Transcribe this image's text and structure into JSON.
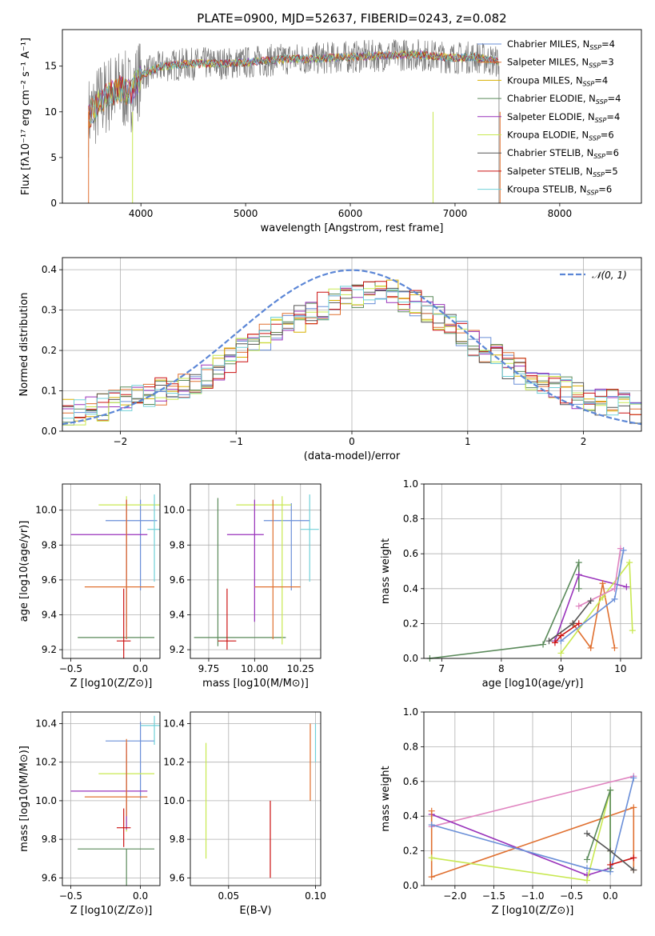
{
  "figure": {
    "title": "PLATE=0900, MJD=52637, FIBERID=0243, z=0.082"
  },
  "chart_data": [
    {
      "id": "spectrum",
      "type": "line",
      "xlabel": "wavelength [Angstrom, rest frame]",
      "ylabel": "Flux [fλ10⁻¹⁷ erg cm⁻² s⁻¹ A⁻¹]",
      "xlim": [
        3250,
        8780
      ],
      "ylim": [
        0,
        19
      ],
      "xticks": [
        4000,
        5000,
        6000,
        7000,
        8000
      ],
      "yticks": [
        0,
        5,
        10,
        15
      ],
      "grid": false,
      "legend": "upper-right",
      "series": [
        {
          "name": "Chabrier MILES, N_SSP=4",
          "color": "#6a8fd8"
        },
        {
          "name": "Salpeter MILES, N_SSP=3",
          "color": "#e07030"
        },
        {
          "name": "Kroupa MILES, N_SSP=4",
          "color": "#d8b000"
        },
        {
          "name": "Chabrier ELODIE, N_SSP=4",
          "color": "#5a8a5a"
        },
        {
          "name": "Salpeter ELODIE, N_SSP=4",
          "color": "#9933bb"
        },
        {
          "name": "Kroupa ELODIE, N_SSP=6",
          "color": "#c8e850"
        },
        {
          "name": "Chabrier STELIB, N_SSP=6",
          "color": "#555555"
        },
        {
          "name": "Salpeter STELIB, N_SSP=5",
          "color": "#cc1111"
        },
        {
          "name": "Kroupa STELIB, N_SSP=6",
          "color": "#70d0d8"
        }
      ],
      "x": [
        3500,
        3600,
        3700,
        3800,
        3900,
        4000,
        4200,
        4400,
        4600,
        4800,
        5000,
        5200,
        5400,
        5600,
        5800,
        6000,
        6200,
        6400,
        6600,
        6800,
        7000,
        7200,
        7400
      ],
      "y": [
        9.5,
        11,
        12,
        12.5,
        12,
        14,
        15,
        15.2,
        15.3,
        15.3,
        15.4,
        15.6,
        15.8,
        15.8,
        15.9,
        16,
        16.1,
        16.2,
        16.3,
        16.1,
        15.9,
        16,
        15.5
      ]
    },
    {
      "id": "residuals",
      "type": "histogram",
      "xlabel": "(data-model)/error",
      "ylabel": "Normed distribution",
      "xlim": [
        -2.5,
        2.5
      ],
      "ylim": [
        0,
        0.43
      ],
      "xticks": [
        -2,
        -1,
        0,
        1,
        2
      ],
      "yticks": [
        0.0,
        0.1,
        0.2,
        0.3,
        0.4
      ],
      "grid": true,
      "legend": "upper-right",
      "reference_curve": {
        "name": "N(0,1)",
        "mean": 0,
        "sigma": 1,
        "color": "#5b86d6"
      },
      "bin_width": 0.1,
      "counts": [
        0.05,
        0.05,
        0.06,
        0.06,
        0.07,
        0.08,
        0.08,
        0.09,
        0.1,
        0.1,
        0.11,
        0.12,
        0.14,
        0.16,
        0.18,
        0.2,
        0.21,
        0.23,
        0.25,
        0.27,
        0.28,
        0.3,
        0.31,
        0.32,
        0.33,
        0.34,
        0.35,
        0.35,
        0.34,
        0.33,
        0.32,
        0.3,
        0.28,
        0.26,
        0.24,
        0.22,
        0.2,
        0.18,
        0.16,
        0.15,
        0.13,
        0.12,
        0.11,
        0.1,
        0.09,
        0.08,
        0.07,
        0.07,
        0.06,
        0.05
      ]
    },
    {
      "id": "age-vs-Z",
      "type": "errorbar",
      "xlabel": "Z [log10(Z/Z⊙)]",
      "ylabel": "age  [log10(age/yr)]",
      "xlim": [
        -0.56,
        0.14
      ],
      "ylim": [
        9.15,
        10.15
      ],
      "xticks": [
        -0.5,
        0.0
      ],
      "yticks": [
        9.2,
        9.4,
        9.6,
        9.8,
        10.0
      ],
      "grid": true,
      "points": [
        {
          "x": -0.1,
          "y": 9.27,
          "xerr": [
            0.35,
            0.2
          ],
          "yerr": [
            0,
            0
          ],
          "series": 3
        },
        {
          "x": 0.0,
          "y": 9.94,
          "xerr": [
            0.25,
            0.12
          ],
          "yerr": [
            0.4,
            0.12
          ],
          "series": 0
        },
        {
          "x": -0.1,
          "y": 10.03,
          "xerr": [
            0.2,
            0.25
          ],
          "yerr": [
            0.7,
            0.05
          ],
          "series": 5
        },
        {
          "x": -0.1,
          "y": 9.86,
          "xerr": [
            0.4,
            0.15
          ],
          "yerr": [
            0.6,
            0.2
          ],
          "series": 4
        },
        {
          "x": -0.1,
          "y": 9.56,
          "xerr": [
            0.3,
            0.2
          ],
          "yerr": [
            0.3,
            0.5
          ],
          "series": 1
        },
        {
          "x": -0.12,
          "y": 9.25,
          "xerr": [
            0.05,
            0.05
          ],
          "yerr": [
            0.1,
            0.3
          ],
          "series": 7
        },
        {
          "x": 0.1,
          "y": 9.89,
          "xerr": [
            0.05,
            0.05
          ],
          "yerr": [
            0.3,
            0.2
          ],
          "series": 8
        }
      ]
    },
    {
      "id": "age-vs-mass",
      "type": "errorbar",
      "xlabel": "mass [log10(M/M⊙)]",
      "ylabel": "",
      "xlim": [
        9.65,
        10.36
      ],
      "ylim": [
        9.15,
        10.15
      ],
      "xticks": [
        9.75,
        10.0,
        10.25
      ],
      "yticks": [
        9.2,
        9.4,
        9.6,
        9.8,
        10.0
      ],
      "grid": true,
      "points": [
        {
          "x": 9.8,
          "y": 9.27,
          "xerr": [
            0.13,
            0.37
          ],
          "yerr": [
            0.05,
            0.8
          ],
          "series": 3
        },
        {
          "x": 10.2,
          "y": 9.94,
          "xerr": [
            0.15,
            0.1
          ],
          "yerr": [
            0.4,
            0.1
          ],
          "series": 0
        },
        {
          "x": 10.15,
          "y": 10.03,
          "xerr": [
            0.25,
            0.05
          ],
          "yerr": [
            0.8,
            0.05
          ],
          "series": 5
        },
        {
          "x": 10.0,
          "y": 9.86,
          "xerr": [
            0.15,
            0.05
          ],
          "yerr": [
            0.5,
            0.2
          ],
          "series": 4
        },
        {
          "x": 10.1,
          "y": 9.56,
          "xerr": [
            0.1,
            0.15
          ],
          "yerr": [
            0.3,
            0.5
          ],
          "series": 1
        },
        {
          "x": 9.85,
          "y": 9.25,
          "xerr": [
            0.05,
            0.05
          ],
          "yerr": [
            0.05,
            0.3
          ],
          "series": 7
        },
        {
          "x": 10.3,
          "y": 9.89,
          "xerr": [
            0.05,
            0.05
          ],
          "yerr": [
            0.3,
            0.2
          ],
          "series": 8
        }
      ]
    },
    {
      "id": "weight-vs-age",
      "type": "line",
      "xlabel": "age  [log10(age/yr)]",
      "ylabel": "mass weight",
      "xlim": [
        6.7,
        10.35
      ],
      "ylim": [
        0,
        1
      ],
      "xticks": [
        7,
        8,
        9,
        10
      ],
      "yticks": [
        0.0,
        0.2,
        0.4,
        0.6,
        0.8,
        1.0
      ],
      "grid": true,
      "series": [
        {
          "color": "#5a8a5a",
          "x": [
            6.8,
            8.7,
            9.3,
            9.3
          ],
          "y": [
            0.0,
            0.08,
            0.55,
            0.4
          ]
        },
        {
          "color": "#9933bb",
          "x": [
            8.9,
            9.3,
            10.1
          ],
          "y": [
            0.1,
            0.48,
            0.41
          ]
        },
        {
          "color": "#e07030",
          "x": [
            9.2,
            9.5,
            9.7,
            9.9
          ],
          "y": [
            0.2,
            0.06,
            0.43,
            0.06
          ]
        },
        {
          "color": "#c8e850",
          "x": [
            9.0,
            9.7,
            10.15,
            10.2
          ],
          "y": [
            0.03,
            0.35,
            0.55,
            0.16
          ]
        },
        {
          "color": "#e084c0",
          "x": [
            9.3,
            9.9,
            10.0
          ],
          "y": [
            0.3,
            0.4,
            0.63
          ]
        },
        {
          "color": "#6a8fd8",
          "x": [
            9.0,
            9.9,
            10.05
          ],
          "y": [
            0.1,
            0.34,
            0.62
          ]
        },
        {
          "color": "#555555",
          "x": [
            8.8,
            9.2,
            9.5
          ],
          "y": [
            0.1,
            0.2,
            0.33
          ]
        },
        {
          "color": "#cc1111",
          "x": [
            8.9,
            9.0,
            9.3
          ],
          "y": [
            0.09,
            0.13,
            0.2
          ]
        }
      ]
    },
    {
      "id": "mass-vs-Z",
      "type": "errorbar",
      "xlabel": "Z [log10(Z/Z⊙)]",
      "ylabel": "mass [log10(M/M⊙)]",
      "xlim": [
        -0.56,
        0.14
      ],
      "ylim": [
        9.56,
        10.46
      ],
      "xticks": [
        -0.5,
        0.0
      ],
      "yticks": [
        9.6,
        9.8,
        10.0,
        10.2,
        10.4
      ],
      "grid": true,
      "points": [
        {
          "x": -0.1,
          "y": 9.75,
          "xerr": [
            0.35,
            0.2
          ],
          "yerr": [
            0.2,
            0
          ],
          "series": 3
        },
        {
          "x": 0.0,
          "y": 10.31,
          "xerr": [
            0.25,
            0.1
          ],
          "yerr": [
            0.3,
            0.1
          ],
          "series": 0
        },
        {
          "x": -0.1,
          "y": 10.14,
          "xerr": [
            0.2,
            0.2
          ],
          "yerr": [
            0.3,
            0.1
          ],
          "series": 5
        },
        {
          "x": -0.1,
          "y": 10.05,
          "xerr": [
            0.4,
            0.15
          ],
          "yerr": [
            0.2,
            0.25
          ],
          "series": 4
        },
        {
          "x": -0.1,
          "y": 10.02,
          "xerr": [
            0.3,
            0.15
          ],
          "yerr": [
            0.1,
            0.3
          ],
          "series": 1
        },
        {
          "x": -0.12,
          "y": 9.86,
          "xerr": [
            0.05,
            0.05
          ],
          "yerr": [
            0.1,
            0.1
          ],
          "series": 7
        },
        {
          "x": 0.1,
          "y": 10.39,
          "xerr": [
            0.1,
            0.05
          ],
          "yerr": [
            0.1,
            0.05
          ],
          "series": 8
        }
      ]
    },
    {
      "id": "mass-vs-EBV",
      "type": "errorbar",
      "xlabel": "E(B-V)",
      "ylabel": "",
      "xlim": [
        0.028,
        0.103
      ],
      "ylim": [
        9.56,
        10.46
      ],
      "xticks": [
        0.05,
        0.1
      ],
      "yticks": [
        9.6,
        9.8,
        10.0,
        10.2,
        10.4
      ],
      "grid": true,
      "points": [
        {
          "x": 0.037,
          "y": 10.0,
          "xerr": [
            0,
            0
          ],
          "yerr": [
            0.3,
            0.3
          ],
          "series": 5
        },
        {
          "x": 0.074,
          "y": 9.8,
          "xerr": [
            0,
            0
          ],
          "yerr": [
            0.2,
            0.2
          ],
          "series": 7
        },
        {
          "x": 0.097,
          "y": 10.2,
          "xerr": [
            0,
            0
          ],
          "yerr": [
            0.2,
            0.2
          ],
          "series": 1
        },
        {
          "x": 0.1,
          "y": 10.3,
          "xerr": [
            0,
            0
          ],
          "yerr": [
            0.1,
            0.1
          ],
          "series": 8
        }
      ]
    },
    {
      "id": "weight-vs-Z",
      "type": "line",
      "xlabel": "Z [log10(Z/Z⊙)]",
      "ylabel": "mass weight",
      "xlim": [
        -2.4,
        0.4
      ],
      "ylim": [
        0,
        1
      ],
      "xticks": [
        -2.0,
        -1.5,
        -1.0,
        -0.5,
        0.0
      ],
      "yticks": [
        0.0,
        0.2,
        0.4,
        0.6,
        0.8,
        1.0
      ],
      "grid": true,
      "series": [
        {
          "color": "#e084c0",
          "x": [
            -2.3,
            0.3
          ],
          "y": [
            0.34,
            0.63
          ]
        },
        {
          "color": "#9933bb",
          "x": [
            -2.3,
            -0.3,
            0.0
          ],
          "y": [
            0.41,
            0.06,
            0.1
          ]
        },
        {
          "color": "#e07030",
          "x": [
            -2.3,
            -2.3,
            0.3,
            0.3
          ],
          "y": [
            0.43,
            0.05,
            0.45,
            0.09
          ]
        },
        {
          "color": "#c8e850",
          "x": [
            -2.3,
            -0.3,
            0.0,
            0.0
          ],
          "y": [
            0.16,
            0.03,
            0.55,
            0.2
          ]
        },
        {
          "color": "#6a8fd8",
          "x": [
            -2.3,
            -0.3,
            0.0,
            0.3
          ],
          "y": [
            0.35,
            0.1,
            0.08,
            0.62
          ]
        },
        {
          "color": "#5a8a5a",
          "x": [
            -0.3,
            0.0,
            0.0
          ],
          "y": [
            0.15,
            0.55,
            0.1
          ]
        },
        {
          "color": "#cc1111",
          "x": [
            0.0,
            0.3
          ],
          "y": [
            0.12,
            0.16
          ]
        },
        {
          "color": "#555555",
          "x": [
            -0.3,
            0.0,
            0.3
          ],
          "y": [
            0.3,
            0.2,
            0.09
          ]
        }
      ]
    }
  ]
}
